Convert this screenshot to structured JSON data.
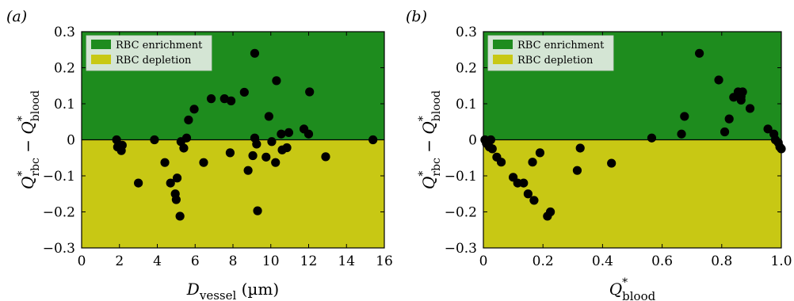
{
  "chart_data": [
    {
      "type": "scatter",
      "panel_label": "(a)",
      "xlabel": {
        "symbol": "D",
        "sub": "vessel",
        "unit": " (µm)"
      },
      "ylabel": {
        "a": "Q",
        "a_sup": "*",
        "a_sub": "rbc",
        "minus": " − ",
        "b": "Q",
        "b_sup": "*",
        "b_sub": "blood"
      },
      "xlim": [
        0,
        16
      ],
      "ylim": [
        -0.3,
        0.3
      ],
      "xticks": [
        0,
        2,
        4,
        6,
        8,
        10,
        12,
        14,
        16
      ],
      "xtick_labels": [
        "0",
        "2",
        "4",
        "6",
        "8",
        "10",
        "12",
        "14",
        "16"
      ],
      "yticks": [
        -0.3,
        -0.2,
        -0.1,
        0,
        0.1,
        0.2,
        0.3
      ],
      "ytick_labels": [
        "−0.3",
        "−0.2",
        "−0.1",
        "0",
        "0.1",
        "0.2",
        "0.3"
      ],
      "regions": [
        {
          "name": "RBC enrichment",
          "from": 0,
          "to": 0.3,
          "color": "#1e8c1e"
        },
        {
          "name": "RBC depletion",
          "from": -0.3,
          "to": 0,
          "color": "#c8c814"
        }
      ],
      "legend_position": "top-left",
      "points": [
        [
          1.85,
          0.0
        ],
        [
          1.9,
          -0.02
        ],
        [
          2.1,
          -0.03
        ],
        [
          2.15,
          -0.015
        ],
        [
          3.0,
          -0.12
        ],
        [
          3.85,
          0.0
        ],
        [
          4.4,
          -0.063
        ],
        [
          4.7,
          -0.12
        ],
        [
          4.95,
          -0.15
        ],
        [
          5.0,
          -0.166
        ],
        [
          5.05,
          -0.106
        ],
        [
          5.2,
          -0.212
        ],
        [
          5.25,
          -0.005
        ],
        [
          5.4,
          -0.023
        ],
        [
          5.55,
          0.005
        ],
        [
          5.65,
          0.055
        ],
        [
          5.95,
          0.085
        ],
        [
          6.45,
          -0.063
        ],
        [
          6.85,
          0.114
        ],
        [
          7.55,
          0.114
        ],
        [
          7.9,
          0.108
        ],
        [
          7.85,
          -0.036
        ],
        [
          8.6,
          0.132
        ],
        [
          8.8,
          -0.085
        ],
        [
          9.05,
          -0.044
        ],
        [
          9.15,
          0.24
        ],
        [
          9.15,
          0.005
        ],
        [
          9.25,
          -0.012
        ],
        [
          9.3,
          -0.197
        ],
        [
          9.75,
          -0.048
        ],
        [
          9.9,
          0.065
        ],
        [
          10.05,
          -0.005
        ],
        [
          10.25,
          -0.063
        ],
        [
          10.3,
          0.164
        ],
        [
          10.55,
          0.016
        ],
        [
          10.6,
          -0.028
        ],
        [
          10.85,
          -0.022
        ],
        [
          10.95,
          0.02
        ],
        [
          11.75,
          0.03
        ],
        [
          12.0,
          0.016
        ],
        [
          12.05,
          0.133
        ],
        [
          12.9,
          -0.047
        ],
        [
          15.4,
          0.0
        ]
      ]
    },
    {
      "type": "scatter",
      "panel_label": "(b)",
      "xlabel": {
        "symbol": "Q",
        "sup": "*",
        "sub": "blood",
        "unit": ""
      },
      "ylabel": {
        "a": "Q",
        "a_sup": "*",
        "a_sub": "rbc",
        "minus": " − ",
        "b": "Q",
        "b_sup": "*",
        "b_sub": "blood"
      },
      "xlim": [
        0,
        1
      ],
      "ylim": [
        -0.3,
        0.3
      ],
      "xticks": [
        0,
        0.2,
        0.4,
        0.6,
        0.8,
        1.0
      ],
      "xtick_labels": [
        "0",
        "0.2",
        "0.4",
        "0.6",
        "0.8",
        "1.0"
      ],
      "yticks": [
        -0.3,
        -0.2,
        -0.1,
        0,
        0.1,
        0.2,
        0.3
      ],
      "ytick_labels": [
        "−0.3",
        "−0.2",
        "−0.1",
        "0",
        "0.1",
        "0.2",
        "0.3"
      ],
      "regions": [
        {
          "name": "RBC enrichment",
          "from": 0,
          "to": 0.3,
          "color": "#1e8c1e"
        },
        {
          "name": "RBC depletion",
          "from": -0.3,
          "to": 0,
          "color": "#c8c814"
        }
      ],
      "legend_position": "top-left",
      "points": [
        [
          0.005,
          0.0
        ],
        [
          0.01,
          -0.01
        ],
        [
          0.02,
          -0.02
        ],
        [
          0.025,
          0.0
        ],
        [
          0.03,
          -0.025
        ],
        [
          0.045,
          -0.048
        ],
        [
          0.06,
          -0.062
        ],
        [
          0.1,
          -0.104
        ],
        [
          0.115,
          -0.12
        ],
        [
          0.135,
          -0.12
        ],
        [
          0.15,
          -0.15
        ],
        [
          0.165,
          -0.062
        ],
        [
          0.17,
          -0.168
        ],
        [
          0.19,
          -0.036
        ],
        [
          0.215,
          -0.212
        ],
        [
          0.225,
          -0.2
        ],
        [
          0.315,
          -0.085
        ],
        [
          0.325,
          -0.023
        ],
        [
          0.43,
          -0.065
        ],
        [
          0.565,
          0.005
        ],
        [
          0.665,
          0.016
        ],
        [
          0.675,
          0.065
        ],
        [
          0.725,
          0.24
        ],
        [
          0.79,
          0.166
        ],
        [
          0.81,
          0.022
        ],
        [
          0.825,
          0.058
        ],
        [
          0.84,
          0.118
        ],
        [
          0.855,
          0.133
        ],
        [
          0.865,
          0.11
        ],
        [
          0.865,
          0.12
        ],
        [
          0.87,
          0.133
        ],
        [
          0.895,
          0.087
        ],
        [
          0.955,
          0.03
        ],
        [
          0.975,
          0.016
        ],
        [
          0.98,
          0.0
        ],
        [
          0.99,
          -0.008
        ],
        [
          0.995,
          -0.02
        ],
        [
          1.0,
          -0.025
        ]
      ]
    }
  ]
}
